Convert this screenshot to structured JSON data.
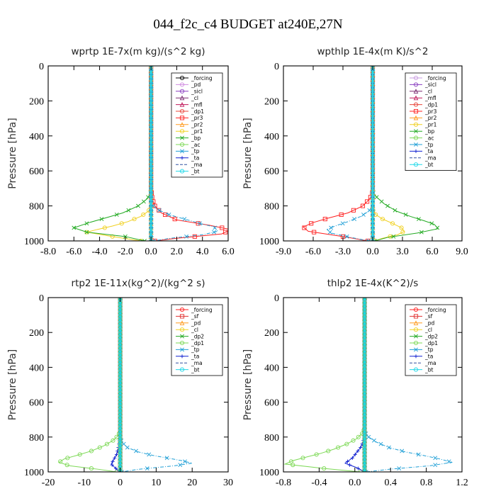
{
  "title": "044_f2c_c4  BUDGET at240E,27N",
  "chart_data": [
    {
      "type": "line",
      "title": "wprtp  1E-7x(m kg)/(s^2 kg)",
      "ylabel": "Pressure [hPa]",
      "xlim": [
        -8,
        6
      ],
      "ylim": [
        0,
        1000
      ],
      "xticks": [
        "-8.0",
        "-6.0",
        "-4.0",
        "-2.0",
        "0.0",
        "2.0",
        "4.0",
        "6.0"
      ],
      "yticks": [
        "0",
        "200",
        "400",
        "600",
        "800",
        "1000"
      ],
      "legend_placement": "top-right",
      "series": [
        {
          "name": "_forcing",
          "color": "#000000",
          "marker": "o",
          "x": [
            0,
            0
          ],
          "y": [
            0,
            1000
          ]
        },
        {
          "name": "_pd",
          "color": "#d08be0",
          "marker": "o",
          "x": [
            0,
            0
          ],
          "y": [
            0,
            1000
          ]
        },
        {
          "name": "_sicl",
          "color": "#8a3fc0",
          "marker": "o",
          "x": [
            0,
            0
          ],
          "y": [
            0,
            1000
          ]
        },
        {
          "name": "_cl",
          "color": "#7a2a70",
          "marker": "tri",
          "x": [
            0,
            0
          ],
          "y": [
            0,
            1000
          ]
        },
        {
          "name": "_mfl",
          "color": "#c0185a",
          "marker": "tri",
          "x": [
            0,
            0
          ],
          "y": [
            0,
            1000
          ]
        },
        {
          "name": "_dp1",
          "color": "#e8443a",
          "marker": "o",
          "x": [
            0,
            0
          ],
          "y": [
            0,
            1000
          ]
        },
        {
          "name": "_pr3",
          "color": "#ff2020",
          "marker": "sq",
          "x": [
            0,
            0,
            0.1,
            0.3,
            0.8,
            2.0,
            4.5,
            6.2,
            5.5,
            2.0,
            0.3
          ],
          "y": [
            0,
            700,
            760,
            800,
            840,
            880,
            910,
            935,
            960,
            985,
            1000
          ]
        },
        {
          "name": "_pr2",
          "color": "#ff9b20",
          "marker": "tri",
          "x": [
            0,
            0
          ],
          "y": [
            0,
            1000
          ]
        },
        {
          "name": "_pr1",
          "color": "#f0d020",
          "marker": "o",
          "x": [
            0,
            0,
            -0.2,
            -0.8,
            -1.8,
            -3.0,
            -4.2,
            -5.0,
            -3.0,
            -0.8
          ],
          "y": [
            0,
            800,
            830,
            860,
            890,
            915,
            935,
            950,
            975,
            1000
          ]
        },
        {
          "name": "_bp",
          "color": "#22aa22",
          "marker": "x",
          "x": [
            0,
            0,
            -0.3,
            -1.0,
            -2.2,
            -3.6,
            -4.8,
            -6.0,
            -5.0,
            -2.0,
            -0.5
          ],
          "y": [
            0,
            720,
            760,
            800,
            840,
            870,
            895,
            925,
            950,
            975,
            1000
          ]
        },
        {
          "name": "_ac",
          "color": "#7ed957",
          "marker": "o",
          "x": [
            0,
            0
          ],
          "y": [
            0,
            1000
          ]
        },
        {
          "name": "_tp",
          "color": "#1f9fd6",
          "marker": "x",
          "x": [
            0,
            0,
            0.5,
            1.4,
            2.6,
            3.8,
            4.9,
            5.2,
            4.0,
            1.5,
            0.2
          ],
          "y": [
            0,
            790,
            820,
            850,
            875,
            900,
            920,
            945,
            965,
            985,
            1000
          ]
        },
        {
          "name": "_ta",
          "color": "#1020d0",
          "marker": "plus",
          "x": [
            0,
            0
          ],
          "y": [
            0,
            1000
          ]
        },
        {
          "name": "_ma",
          "color": "#3050a0",
          "marker": "none",
          "x": [
            0,
            0
          ],
          "y": [
            0,
            1000
          ]
        },
        {
          "name": "_bt",
          "color": "#20d8e8",
          "marker": "o",
          "x": [
            0,
            0
          ],
          "y": [
            0,
            1000
          ]
        }
      ]
    },
    {
      "type": "line",
      "title": "wpthlp  1E-4x(m K)/s^2",
      "ylabel": "Pressure [hPa]",
      "xlim": [
        -9,
        9
      ],
      "ylim": [
        0,
        1000
      ],
      "xticks": [
        "-9.0",
        "-6.0",
        "-3.0",
        "0.0",
        "3.0",
        "6.0",
        "9.0"
      ],
      "yticks": [
        "0",
        "200",
        "400",
        "600",
        "800",
        "1000"
      ],
      "legend_placement": "top-right",
      "series": [
        {
          "name": "_forcing",
          "color": "#c89be0",
          "marker": "o",
          "x": [
            0,
            0
          ],
          "y": [
            0,
            1000
          ]
        },
        {
          "name": "_sicl",
          "color": "#8a3fc0",
          "marker": "o",
          "x": [
            0,
            0
          ],
          "y": [
            0,
            1000
          ]
        },
        {
          "name": "_cl",
          "color": "#7a2a70",
          "marker": "tri",
          "x": [
            0,
            0
          ],
          "y": [
            0,
            1000
          ]
        },
        {
          "name": "_mfl",
          "color": "#c0185a",
          "marker": "tri",
          "x": [
            0,
            0
          ],
          "y": [
            0,
            1000
          ]
        },
        {
          "name": "_dp1",
          "color": "#e8443a",
          "marker": "o",
          "x": [
            0,
            0
          ],
          "y": [
            0,
            1000
          ]
        },
        {
          "name": "_pr3",
          "color": "#ff2020",
          "marker": "sq",
          "x": [
            0,
            0,
            -0.3,
            -1.0,
            -2.5,
            -4.5,
            -6.0,
            -7.0,
            -6.5,
            -3.0,
            -0.5
          ],
          "y": [
            0,
            720,
            760,
            800,
            840,
            870,
            895,
            920,
            945,
            975,
            1000
          ]
        },
        {
          "name": "_pr2",
          "color": "#ff9b20",
          "marker": "tri",
          "x": [
            0,
            0
          ],
          "y": [
            0,
            1000
          ]
        },
        {
          "name": "_pr1",
          "color": "#f0d020",
          "marker": "o",
          "x": [
            0,
            0,
            0.3,
            1.0,
            2.0,
            2.9,
            3.2,
            2.5,
            1.0,
            0.2
          ],
          "y": [
            0,
            820,
            850,
            875,
            900,
            925,
            945,
            965,
            985,
            1000
          ]
        },
        {
          "name": "_bp",
          "color": "#22aa22",
          "marker": "x",
          "x": [
            0,
            0,
            0.4,
            1.2,
            2.4,
            3.8,
            5.2,
            6.2,
            6.6,
            4.5,
            1.5,
            0.2
          ],
          "y": [
            0,
            720,
            750,
            790,
            830,
            860,
            885,
            905,
            930,
            955,
            980,
            1000
          ]
        },
        {
          "name": "_ac",
          "color": "#7ed957",
          "marker": "o",
          "x": [
            0,
            0
          ],
          "y": [
            0,
            1000
          ]
        },
        {
          "name": "_tp",
          "color": "#1f9fd6",
          "marker": "x",
          "x": [
            0,
            0,
            -0.4,
            -1.2,
            -2.5,
            -3.8,
            -4.6,
            -4.2,
            -2.2,
            -0.4
          ],
          "y": [
            0,
            800,
            830,
            860,
            890,
            915,
            935,
            955,
            980,
            1000
          ]
        },
        {
          "name": "_ta",
          "color": "#1020d0",
          "marker": "plus",
          "x": [
            0,
            0
          ],
          "y": [
            0,
            1000
          ]
        },
        {
          "name": "_ma",
          "color": "#3050a0",
          "marker": "none",
          "x": [
            0,
            0
          ],
          "y": [
            0,
            1000
          ]
        },
        {
          "name": "_bt",
          "color": "#20d8e8",
          "marker": "o",
          "x": [
            0,
            0
          ],
          "y": [
            0,
            1000
          ]
        }
      ]
    },
    {
      "type": "line",
      "title": "rtp2  1E-11x(kg^2)/(kg^2 s)",
      "ylabel": "Pressure [hPa]",
      "xlim": [
        -20,
        30
      ],
      "ylim": [
        0,
        1000
      ],
      "xticks": [
        "-20",
        "-10",
        "0",
        "10",
        "20",
        "30"
      ],
      "yticks": [
        "0",
        "200",
        "400",
        "600",
        "800",
        "1000"
      ],
      "legend_placement": "top-right",
      "series": [
        {
          "name": "_forcing",
          "color": "#ff2020",
          "marker": "o",
          "x": [
            0,
            0
          ],
          "y": [
            0,
            1000
          ]
        },
        {
          "name": "_sf",
          "color": "#e03030",
          "marker": "sq",
          "x": [
            0,
            0
          ],
          "y": [
            0,
            1000
          ]
        },
        {
          "name": "_pd",
          "color": "#ff9b20",
          "marker": "tri",
          "x": [
            0,
            0
          ],
          "y": [
            0,
            1000
          ]
        },
        {
          "name": "_cl",
          "color": "#f0d020",
          "marker": "o",
          "x": [
            0,
            0
          ],
          "y": [
            0,
            1000
          ]
        },
        {
          "name": "_dp2",
          "color": "#22aa22",
          "marker": "x",
          "x": [
            0,
            0
          ],
          "y": [
            0,
            1000
          ]
        },
        {
          "name": "_dp1",
          "color": "#7ed957",
          "marker": "o",
          "x": [
            0,
            0,
            -0.5,
            -2.0,
            -4.5,
            -8.0,
            -12.0,
            -15.5,
            -17.0,
            -14.0,
            -6.0,
            -1.0
          ],
          "y": [
            0,
            760,
            790,
            820,
            850,
            880,
            905,
            925,
            945,
            965,
            985,
            1000
          ]
        },
        {
          "name": "_tp",
          "color": "#1f9fd6",
          "marker": "x",
          "x": [
            0,
            0,
            0.5,
            2.0,
            5.0,
            9.0,
            13.0,
            17.0,
            20.0,
            15.0,
            5.0,
            0.5
          ],
          "y": [
            0,
            800,
            830,
            860,
            885,
            905,
            920,
            935,
            950,
            965,
            985,
            1000
          ]
        },
        {
          "name": "_ta",
          "color": "#1020d0",
          "marker": "plus",
          "x": [
            0,
            0,
            -0.3,
            -0.6,
            -1.0,
            -1.8,
            -2.5,
            -1.2,
            -0.2
          ],
          "y": [
            0,
            800,
            840,
            870,
            900,
            930,
            955,
            980,
            1000
          ]
        },
        {
          "name": "_ma",
          "color": "#3050a0",
          "marker": "none",
          "x": [
            0,
            0
          ],
          "y": [
            0,
            1000
          ]
        },
        {
          "name": "_bt",
          "color": "#20d8e8",
          "marker": "o",
          "x": [
            0,
            0
          ],
          "y": [
            0,
            1000
          ]
        }
      ]
    },
    {
      "type": "line",
      "title": "thlp2  1E-4x(K^2)/s",
      "ylabel": "Pressure [hPa]",
      "xlim": [
        -1.0,
        1.2
      ],
      "ylim": [
        0,
        1000
      ],
      "xticks": [
        "-0.8",
        "-0.4",
        "0.0",
        "0.4",
        "0.8",
        "1.2"
      ],
      "yticks": [
        "0",
        "200",
        "400",
        "600",
        "800",
        "1000"
      ],
      "legend_placement": "top-right",
      "series": [
        {
          "name": "_forcing",
          "color": "#ff2020",
          "marker": "o",
          "x": [
            0,
            0
          ],
          "y": [
            0,
            1000
          ]
        },
        {
          "name": "_sf",
          "color": "#e03030",
          "marker": "sq",
          "x": [
            0,
            0
          ],
          "y": [
            0,
            1000
          ]
        },
        {
          "name": "_pd",
          "color": "#ff9b20",
          "marker": "tri",
          "x": [
            0,
            0
          ],
          "y": [
            0,
            1000
          ]
        },
        {
          "name": "_cl",
          "color": "#f0d020",
          "marker": "o",
          "x": [
            0,
            0
          ],
          "y": [
            0,
            1000
          ]
        },
        {
          "name": "_dp2",
          "color": "#22aa22",
          "marker": "x",
          "x": [
            0,
            0
          ],
          "y": [
            0,
            1000
          ]
        },
        {
          "name": "_dp1",
          "color": "#7ed957",
          "marker": "o",
          "x": [
            0,
            0,
            -0.03,
            -0.1,
            -0.22,
            -0.38,
            -0.55,
            -0.72,
            -0.88,
            -0.98,
            -0.5,
            -0.05
          ],
          "y": [
            0,
            750,
            780,
            810,
            840,
            870,
            895,
            915,
            935,
            955,
            980,
            1000
          ]
        },
        {
          "name": "_tp",
          "color": "#1f9fd6",
          "marker": "x",
          "x": [
            0,
            0,
            0.05,
            0.15,
            0.3,
            0.5,
            0.72,
            0.92,
            1.08,
            0.8,
            0.3,
            0.02
          ],
          "y": [
            0,
            770,
            800,
            830,
            860,
            885,
            905,
            925,
            945,
            965,
            985,
            1000
          ]
        },
        {
          "name": "_ta",
          "color": "#1020d0",
          "marker": "plus",
          "x": [
            0,
            0,
            -0.02,
            -0.05,
            -0.1,
            -0.15,
            -0.24,
            -0.1,
            0
          ],
          "y": [
            0,
            790,
            830,
            860,
            890,
            920,
            950,
            975,
            1000
          ]
        },
        {
          "name": "_ma",
          "color": "#3050a0",
          "marker": "none",
          "x": [
            0,
            0
          ],
          "y": [
            0,
            1000
          ]
        },
        {
          "name": "_bt",
          "color": "#20d8e8",
          "marker": "o",
          "x": [
            0,
            0
          ],
          "y": [
            0,
            1000
          ]
        }
      ]
    }
  ]
}
